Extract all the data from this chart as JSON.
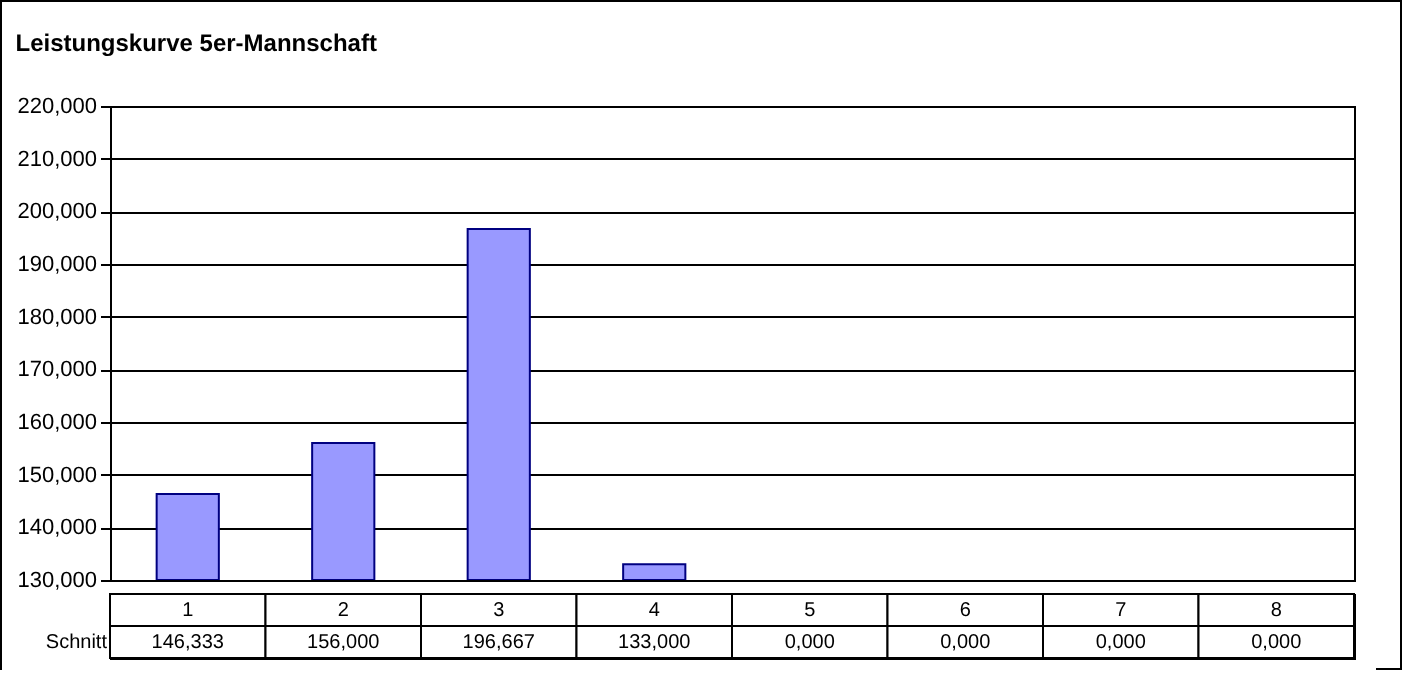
{
  "chart_data": {
    "type": "bar",
    "title": "Leistungskurve 5er-Mannschaft",
    "categories": [
      "1",
      "2",
      "3",
      "4",
      "5",
      "6",
      "7",
      "8"
    ],
    "series": [
      {
        "name": "Schnitt",
        "color": "#9999ff",
        "values": [
          146.333,
          156,
          196.667,
          133,
          null,
          null,
          null,
          null
        ],
        "value_labels": [
          "146,333",
          "156,000",
          "196,667",
          "133,000",
          "0,000",
          "0,000",
          "0,000",
          "0,000"
        ]
      }
    ],
    "ylim": [
      130,
      220
    ],
    "yticks": [
      {
        "value": 130,
        "label": "130,000"
      },
      {
        "value": 140,
        "label": "140,000"
      },
      {
        "value": 150,
        "label": "150,000"
      },
      {
        "value": 160,
        "label": "160,000"
      },
      {
        "value": 170,
        "label": "170,000"
      },
      {
        "value": 180,
        "label": "180,000"
      },
      {
        "value": 190,
        "label": "190,000"
      },
      {
        "value": 200,
        "label": "200,000"
      },
      {
        "value": 210,
        "label": "210,000"
      },
      {
        "value": 220,
        "label": "220,000"
      }
    ],
    "grid": "y",
    "legend": false
  }
}
